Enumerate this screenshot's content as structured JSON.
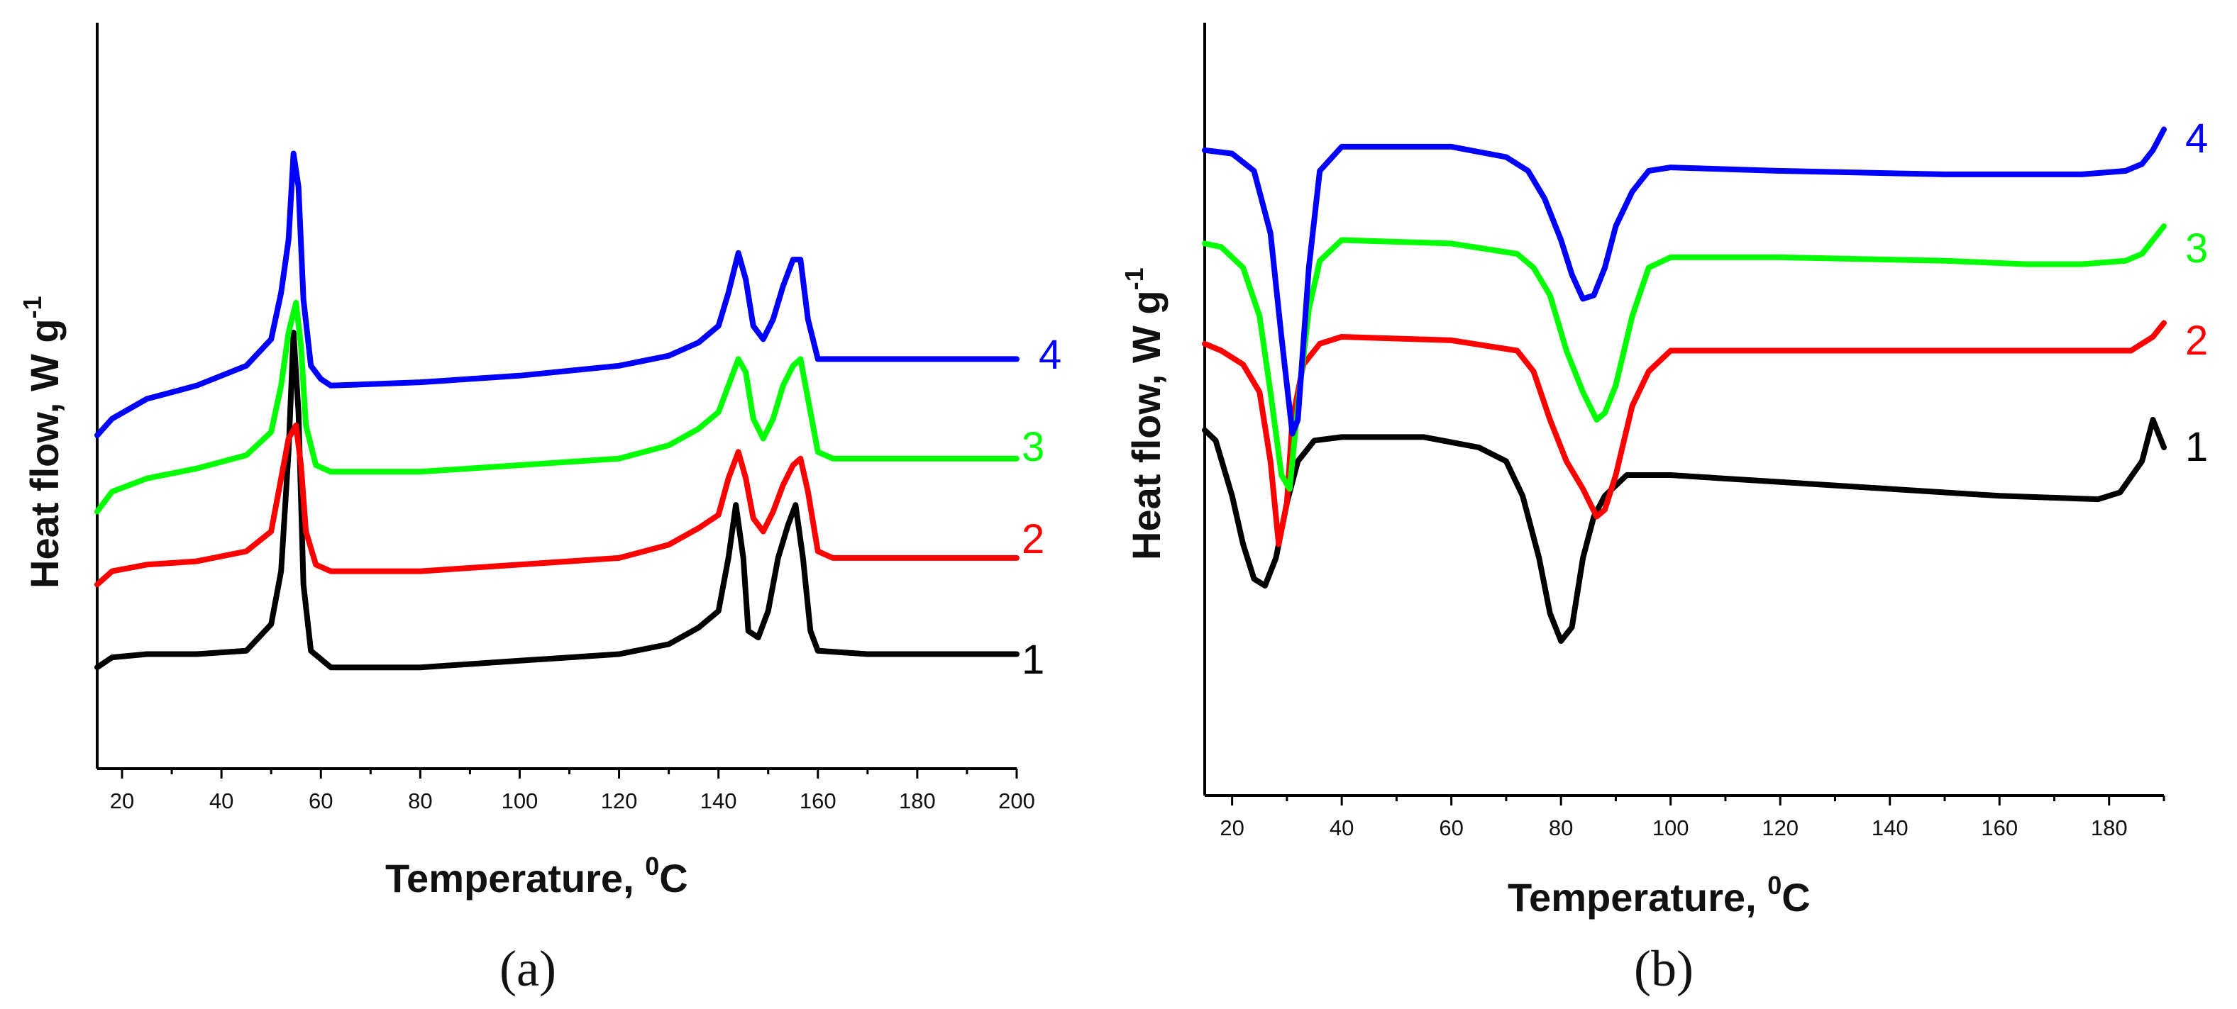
{
  "chart_data": [
    {
      "type": "line",
      "panel_label": "(a)",
      "xlabel": "Temperature, ",
      "xlabel_sup": "0",
      "xlabel_unit": "C",
      "ylabel": "Heat flow, W g",
      "ylabel_sup": "-1",
      "xlim": [
        15,
        200
      ],
      "ylim": [
        0,
        100
      ],
      "y_ticks_shown": false,
      "x_ticks": [
        20,
        40,
        60,
        80,
        100,
        120,
        140,
        160,
        180,
        200
      ],
      "x_tick_labels": [
        "20",
        "40",
        "60",
        "80",
        "100",
        "120",
        "140",
        "160",
        "180",
        "200"
      ],
      "series": [
        {
          "name": "1",
          "label": "1",
          "color": "#000000",
          "points": [
            [
              15,
              9.5
            ],
            [
              18,
              11
            ],
            [
              25,
              11.5
            ],
            [
              35,
              11.5
            ],
            [
              45,
              12
            ],
            [
              50,
              16
            ],
            [
              52,
              24
            ],
            [
              53.5,
              42
            ],
            [
              54.5,
              60
            ],
            [
              55.5,
              48
            ],
            [
              56.5,
              22
            ],
            [
              58,
              12
            ],
            [
              62,
              9.5
            ],
            [
              80,
              9.5
            ],
            [
              100,
              10.5
            ],
            [
              120,
              11.5
            ],
            [
              130,
              13
            ],
            [
              136,
              15.5
            ],
            [
              140,
              18
            ],
            [
              142,
              26
            ],
            [
              143.5,
              34
            ],
            [
              145,
              26
            ],
            [
              146,
              15
            ],
            [
              148,
              14
            ],
            [
              150,
              18
            ],
            [
              152,
              26
            ],
            [
              154,
              31
            ],
            [
              155.5,
              34
            ],
            [
              157,
              26
            ],
            [
              158.5,
              15
            ],
            [
              160,
              12
            ],
            [
              170,
              11.5
            ],
            [
              200,
              11.5
            ]
          ]
        },
        {
          "name": "2",
          "label": "2",
          "color": "#ff0000",
          "points": [
            [
              15,
              22
            ],
            [
              18,
              24
            ],
            [
              25,
              25
            ],
            [
              35,
              25.5
            ],
            [
              45,
              27
            ],
            [
              50,
              30
            ],
            [
              52,
              38
            ],
            [
              53.5,
              44
            ],
            [
              55,
              46
            ],
            [
              56,
              40
            ],
            [
              57,
              30
            ],
            [
              59,
              25
            ],
            [
              62,
              24
            ],
            [
              80,
              24
            ],
            [
              100,
              25
            ],
            [
              120,
              26
            ],
            [
              130,
              28
            ],
            [
              136,
              30.5
            ],
            [
              140,
              32.5
            ],
            [
              142,
              38
            ],
            [
              144,
              42
            ],
            [
              145.5,
              38
            ],
            [
              147,
              32
            ],
            [
              149,
              30
            ],
            [
              151,
              33
            ],
            [
              153,
              37
            ],
            [
              155,
              40
            ],
            [
              156.5,
              41
            ],
            [
              158,
              36
            ],
            [
              160,
              27
            ],
            [
              163,
              26
            ],
            [
              180,
              26
            ],
            [
              200,
              26
            ]
          ]
        },
        {
          "name": "3",
          "label": "3",
          "color": "#00ff00",
          "points": [
            [
              15,
              33
            ],
            [
              18,
              36
            ],
            [
              25,
              38
            ],
            [
              35,
              39.5
            ],
            [
              45,
              41.5
            ],
            [
              50,
              45
            ],
            [
              52,
              52
            ],
            [
              53.5,
              60
            ],
            [
              55,
              64.5
            ],
            [
              56,
              58
            ],
            [
              57,
              46
            ],
            [
              59,
              40
            ],
            [
              62,
              39
            ],
            [
              80,
              39
            ],
            [
              100,
              40
            ],
            [
              120,
              41
            ],
            [
              130,
              43
            ],
            [
              136,
              45.5
            ],
            [
              140,
              48
            ],
            [
              142,
              52
            ],
            [
              144,
              56
            ],
            [
              145.5,
              54
            ],
            [
              147,
              47
            ],
            [
              149,
              44
            ],
            [
              151,
              47
            ],
            [
              153,
              52
            ],
            [
              155,
              55
            ],
            [
              156.5,
              56
            ],
            [
              158,
              50
            ],
            [
              160,
              42
            ],
            [
              163,
              41
            ],
            [
              180,
              41
            ],
            [
              200,
              41
            ]
          ]
        },
        {
          "name": "4",
          "label": "4",
          "color": "#0000ff",
          "points": [
            [
              15,
              44.5
            ],
            [
              18,
              47
            ],
            [
              25,
              50
            ],
            [
              35,
              52
            ],
            [
              45,
              55
            ],
            [
              50,
              59
            ],
            [
              52,
              66
            ],
            [
              53.5,
              74
            ],
            [
              54.5,
              87
            ],
            [
              55.5,
              82
            ],
            [
              56.5,
              65
            ],
            [
              58,
              55
            ],
            [
              60,
              53
            ],
            [
              62,
              52
            ],
            [
              80,
              52.5
            ],
            [
              100,
              53.5
            ],
            [
              120,
              55
            ],
            [
              130,
              56.5
            ],
            [
              136,
              58.5
            ],
            [
              140,
              61
            ],
            [
              142,
              66
            ],
            [
              144,
              72
            ],
            [
              145.5,
              68
            ],
            [
              147,
              61
            ],
            [
              149,
              59
            ],
            [
              151,
              62
            ],
            [
              153,
              67
            ],
            [
              155,
              71
            ],
            [
              156.5,
              71
            ],
            [
              158,
              62
            ],
            [
              160,
              56
            ],
            [
              163,
              56
            ],
            [
              180,
              56
            ],
            [
              200,
              56
            ]
          ]
        }
      ]
    },
    {
      "type": "line",
      "panel_label": "(b)",
      "xlabel": "Temperature, ",
      "xlabel_sup": "0",
      "xlabel_unit": "C",
      "ylabel": "Heat flow, W g",
      "ylabel_sup": "-1",
      "xlim": [
        15,
        190
      ],
      "ylim": [
        0,
        100
      ],
      "y_ticks_shown": false,
      "x_ticks": [
        20,
        40,
        60,
        80,
        100,
        120,
        140,
        160,
        180
      ],
      "x_tick_labels": [
        "20",
        "40",
        "60",
        "80",
        "100",
        "120",
        "140",
        "160",
        "180"
      ],
      "series": [
        {
          "name": "1",
          "label": "1",
          "color": "#000000",
          "points": [
            [
              15,
              46.5
            ],
            [
              17,
              45
            ],
            [
              20,
              37
            ],
            [
              22,
              30
            ],
            [
              24,
              25
            ],
            [
              26,
              24
            ],
            [
              28,
              28
            ],
            [
              30,
              36
            ],
            [
              32,
              42
            ],
            [
              35,
              45
            ],
            [
              40,
              45.5
            ],
            [
              55,
              45.5
            ],
            [
              65,
              44
            ],
            [
              70,
              42
            ],
            [
              73,
              37
            ],
            [
              76,
              28
            ],
            [
              78,
              20
            ],
            [
              80,
              16
            ],
            [
              82,
              18
            ],
            [
              84,
              28
            ],
            [
              86,
              34
            ],
            [
              88,
              37
            ],
            [
              92,
              40
            ],
            [
              100,
              40
            ],
            [
              120,
              39
            ],
            [
              140,
              38
            ],
            [
              160,
              37
            ],
            [
              178,
              36.5
            ],
            [
              182,
              37.5
            ],
            [
              186,
              42
            ],
            [
              188,
              48
            ],
            [
              190,
              44
            ]
          ]
        },
        {
          "name": "2",
          "label": "2",
          "color": "#ff0000",
          "points": [
            [
              15,
              59
            ],
            [
              18,
              58
            ],
            [
              22,
              56
            ],
            [
              25,
              52
            ],
            [
              27,
              42
            ],
            [
              28.5,
              30
            ],
            [
              30,
              36
            ],
            [
              31,
              48
            ],
            [
              33,
              56
            ],
            [
              36,
              59
            ],
            [
              40,
              60
            ],
            [
              60,
              59.5
            ],
            [
              72,
              58
            ],
            [
              75,
              55
            ],
            [
              78,
              48
            ],
            [
              81,
              42
            ],
            [
              84,
              38
            ],
            [
              86.5,
              34
            ],
            [
              88,
              35
            ],
            [
              90,
              40
            ],
            [
              93,
              50
            ],
            [
              96,
              55
            ],
            [
              100,
              58
            ],
            [
              110,
              58
            ],
            [
              130,
              58
            ],
            [
              150,
              58
            ],
            [
              170,
              58
            ],
            [
              184,
              58
            ],
            [
              188,
              60
            ],
            [
              190,
              62
            ]
          ]
        },
        {
          "name": "3",
          "label": "3",
          "color": "#00ff00",
          "points": [
            [
              15,
              73.5
            ],
            [
              18,
              73
            ],
            [
              22,
              70
            ],
            [
              25,
              63
            ],
            [
              27,
              52
            ],
            [
              29,
              40
            ],
            [
              30.5,
              38
            ],
            [
              32,
              50
            ],
            [
              34,
              64
            ],
            [
              36,
              71
            ],
            [
              40,
              74
            ],
            [
              60,
              73.5
            ],
            [
              72,
              72
            ],
            [
              75,
              70
            ],
            [
              78,
              66
            ],
            [
              81,
              58
            ],
            [
              84,
              52
            ],
            [
              86.5,
              48
            ],
            [
              88,
              49
            ],
            [
              90,
              53
            ],
            [
              93,
              63
            ],
            [
              96,
              70
            ],
            [
              100,
              71.5
            ],
            [
              120,
              71.5
            ],
            [
              150,
              71
            ],
            [
              165,
              70.5
            ],
            [
              175,
              70.5
            ],
            [
              183,
              71
            ],
            [
              186,
              72
            ],
            [
              188,
              74
            ],
            [
              190,
              76
            ]
          ]
        },
        {
          "name": "4",
          "label": "4",
          "color": "#0000ff",
          "points": [
            [
              15,
              87
            ],
            [
              20,
              86.5
            ],
            [
              24,
              84
            ],
            [
              27,
              75
            ],
            [
              29,
              60
            ],
            [
              31,
              46
            ],
            [
              32,
              48
            ],
            [
              34,
              70
            ],
            [
              36,
              84
            ],
            [
              40,
              87.5
            ],
            [
              60,
              87.5
            ],
            [
              70,
              86
            ],
            [
              74,
              84
            ],
            [
              77,
              80
            ],
            [
              80,
              74
            ],
            [
              82,
              69
            ],
            [
              84,
              65.5
            ],
            [
              86,
              66
            ],
            [
              88,
              70
            ],
            [
              90,
              76
            ],
            [
              93,
              81
            ],
            [
              96,
              84
            ],
            [
              100,
              84.5
            ],
            [
              120,
              84
            ],
            [
              150,
              83.5
            ],
            [
              175,
              83.5
            ],
            [
              183,
              84
            ],
            [
              186,
              85
            ],
            [
              188,
              87
            ],
            [
              190,
              90
            ]
          ]
        }
      ]
    }
  ]
}
